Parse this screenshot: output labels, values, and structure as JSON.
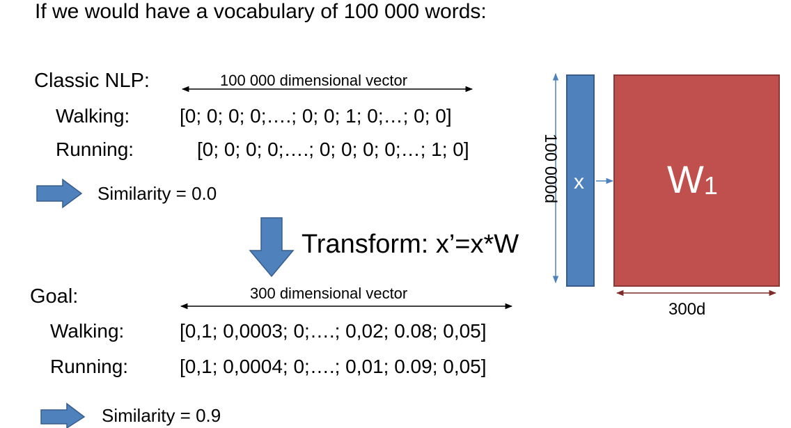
{
  "title": "If we would have a vocabulary of 100 000 words:",
  "classic": {
    "heading": "Classic NLP:",
    "dim_label": "100 000 dimensional vector",
    "rows": [
      {
        "label": "Walking:",
        "vector": "[0; 0; 0; 0;….; 0; 0; 1; 0;…; 0; 0]"
      },
      {
        "label": "Running:",
        "vector": "[0; 0; 0; 0;….; 0; 0; 0; 0;…; 1; 0]"
      }
    ],
    "similarity": "Similarity = 0.0"
  },
  "transform": {
    "text": "Transform: x’=x*W"
  },
  "goal": {
    "heading": "Goal:",
    "dim_label": "300 dimensional vector",
    "rows": [
      {
        "label": "Walking:",
        "vector": "[0,1; 0,0003; 0;….; 0,02; 0.08; 0,05]"
      },
      {
        "label": "Running:",
        "vector": "[0,1; 0,0004; 0;….; 0,01; 0.09; 0,05]"
      }
    ],
    "similarity": "Similarity = 0.9"
  },
  "diagram": {
    "x_label": "x",
    "w_label": "W",
    "w_subscript": "1",
    "height_label": "100 000d",
    "width_label": "300d",
    "colors": {
      "x_fill": "#4f81bd",
      "x_stroke": "#385d8a",
      "w_fill": "#c0504d",
      "w_stroke": "#8c3836",
      "arrow_blue": "#4f81bd",
      "arrow_dark": "#7f2a28"
    }
  }
}
